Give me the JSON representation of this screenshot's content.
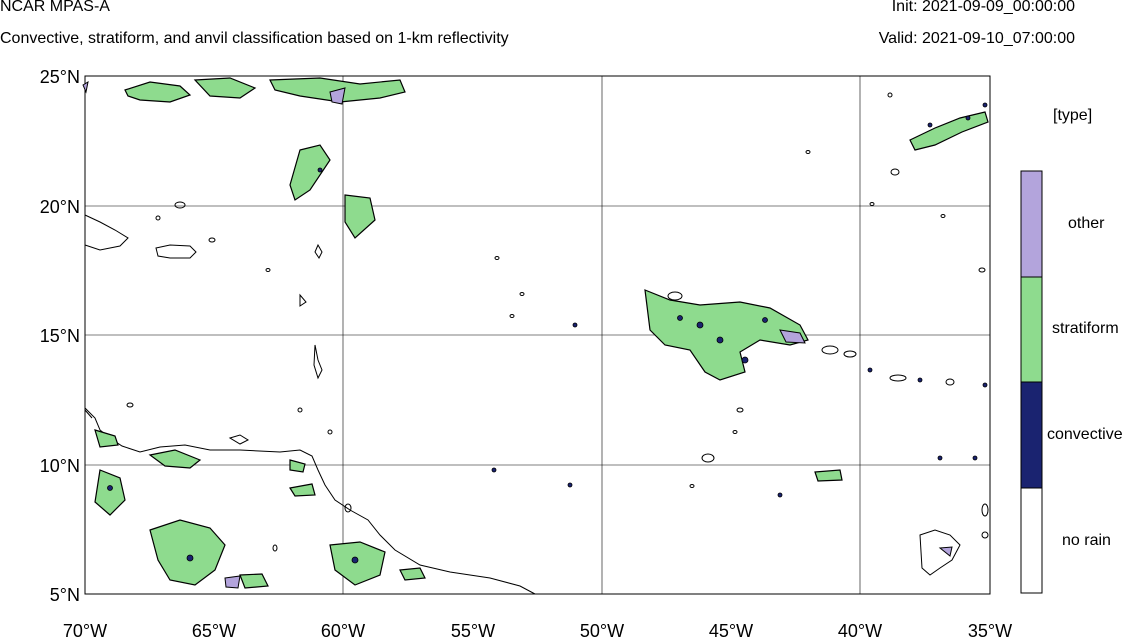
{
  "header": {
    "title": "NCAR MPAS-A",
    "subtitle": "Convective, stratiform, and anvil classification based on 1-km reflectivity",
    "init": "Init: 2021-09-09_00:00:00",
    "valid": "Valid: 2021-09-10_07:00:00"
  },
  "map": {
    "lat_labels": [
      "25°N",
      "20°N",
      "15°N",
      "10°N",
      "5°N"
    ],
    "lon_labels": [
      "70°W",
      "65°W",
      "60°W",
      "55°W",
      "50°W",
      "45°W",
      "40°W",
      "35°W"
    ],
    "extent": {
      "lon": [
        -70,
        -35
      ],
      "lat": [
        5,
        25
      ]
    }
  },
  "legend": {
    "title": "[type]",
    "items": [
      {
        "label": "other",
        "color": "#b3a4dc"
      },
      {
        "label": "stratiform",
        "color": "#8edb8e"
      },
      {
        "label": "convective",
        "color": "#1a2370"
      },
      {
        "label": "no rain",
        "color": "#ffffff"
      }
    ]
  },
  "colors": {
    "grid": "#000000",
    "coast": "#000000"
  }
}
